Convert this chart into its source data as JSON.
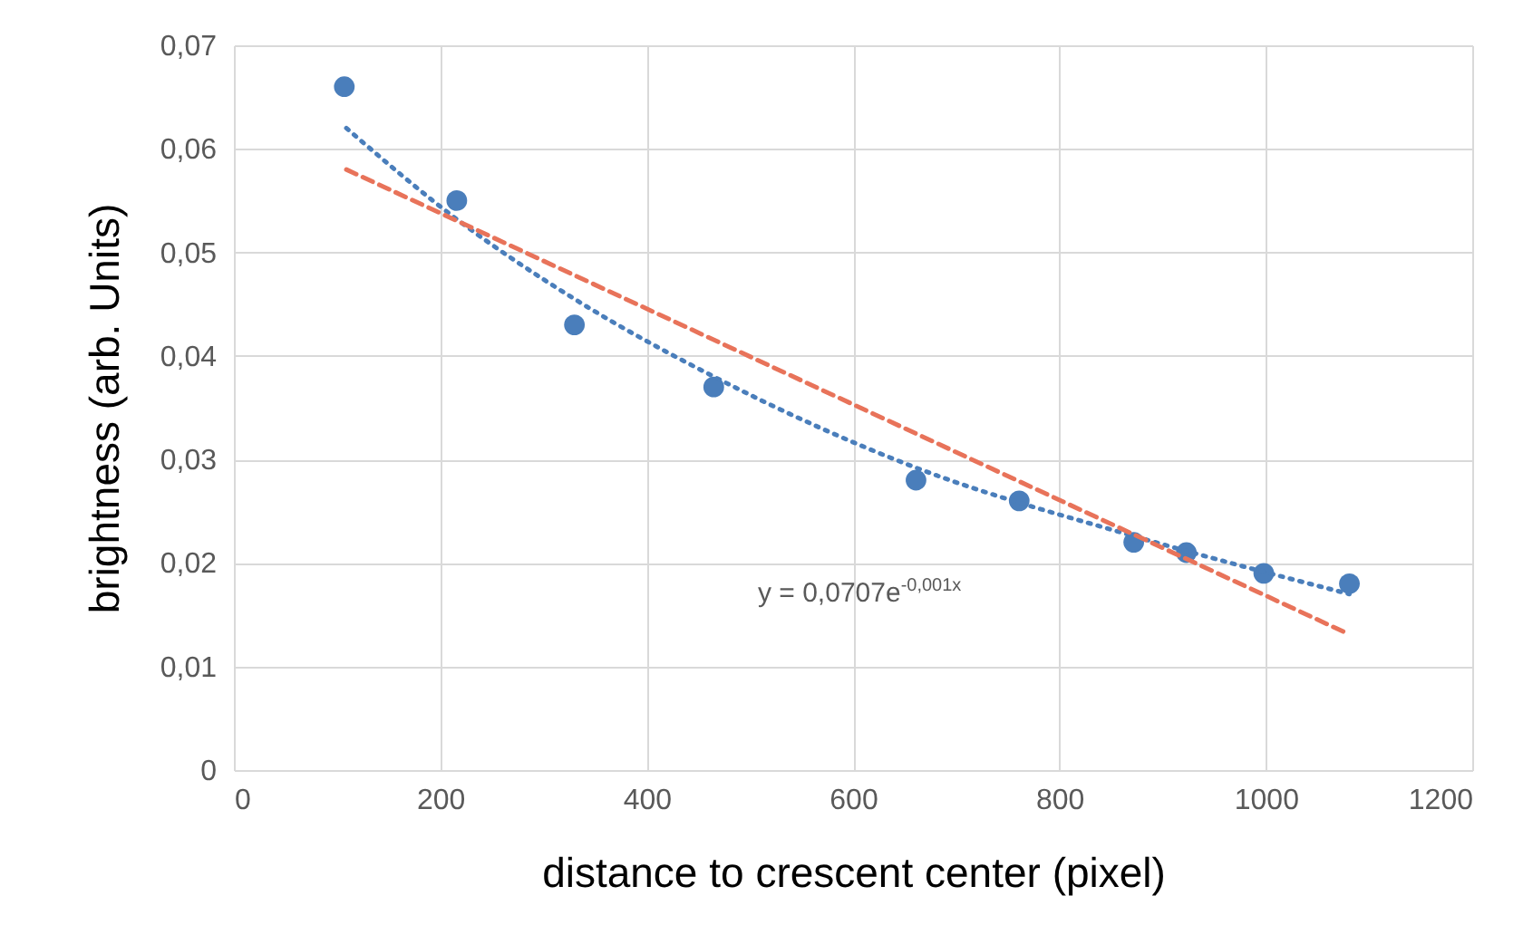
{
  "chart_data": {
    "type": "scatter",
    "xlabel": "distance to crescent center (pixel)",
    "ylabel": "brightness (arb. Units)",
    "xlim": [
      0,
      1200
    ],
    "xticks": [
      0,
      200,
      400,
      600,
      800,
      1000,
      1200
    ],
    "ylim": [
      0,
      0.07
    ],
    "yticks": [
      0,
      {
        "value": 0.01,
        "label": "0,01"
      },
      {
        "value": 0.02,
        "label": "0,02"
      },
      {
        "value": 0.03,
        "label": "0,03"
      },
      {
        "value": 0.04,
        "label": "0,04"
      },
      {
        "value": 0.05,
        "label": "0,05"
      },
      {
        "value": 0.06,
        "label": "0,06"
      },
      {
        "value": 0.07,
        "label": "0,07"
      }
    ],
    "grid": true,
    "marker": "circle",
    "annotations": [
      "y = 0,0707e$^{-0,001x}$"
    ],
    "series": [
      {
        "color": "#4a7ebb",
        "x": [
          107,
          216,
          330,
          465,
          661,
          761,
          872,
          923,
          998,
          1081
        ],
        "values": [
          0.066,
          0.055,
          0.043,
          0.037,
          0.028,
          0.026,
          0.022,
          0.021,
          0.019,
          0.018
        ]
      },
      {
        "type": "line",
        "line_style": "dotted",
        "marker": "none",
        "color": "#4a7ebb",
        "x": [
          109,
          216,
          330,
          465,
          661,
          872,
          1081
        ],
        "values": [
          0.062,
          0.0532,
          0.0455,
          0.038,
          0.0292,
          0.0226,
          0.017
        ]
      },
      {
        "type": "line",
        "line_style": "dashed",
        "marker": "none",
        "color": "#e8735a",
        "x": [
          109,
          1081
        ],
        "values": [
          0.058,
          0.0131
        ]
      }
    ]
  }
}
